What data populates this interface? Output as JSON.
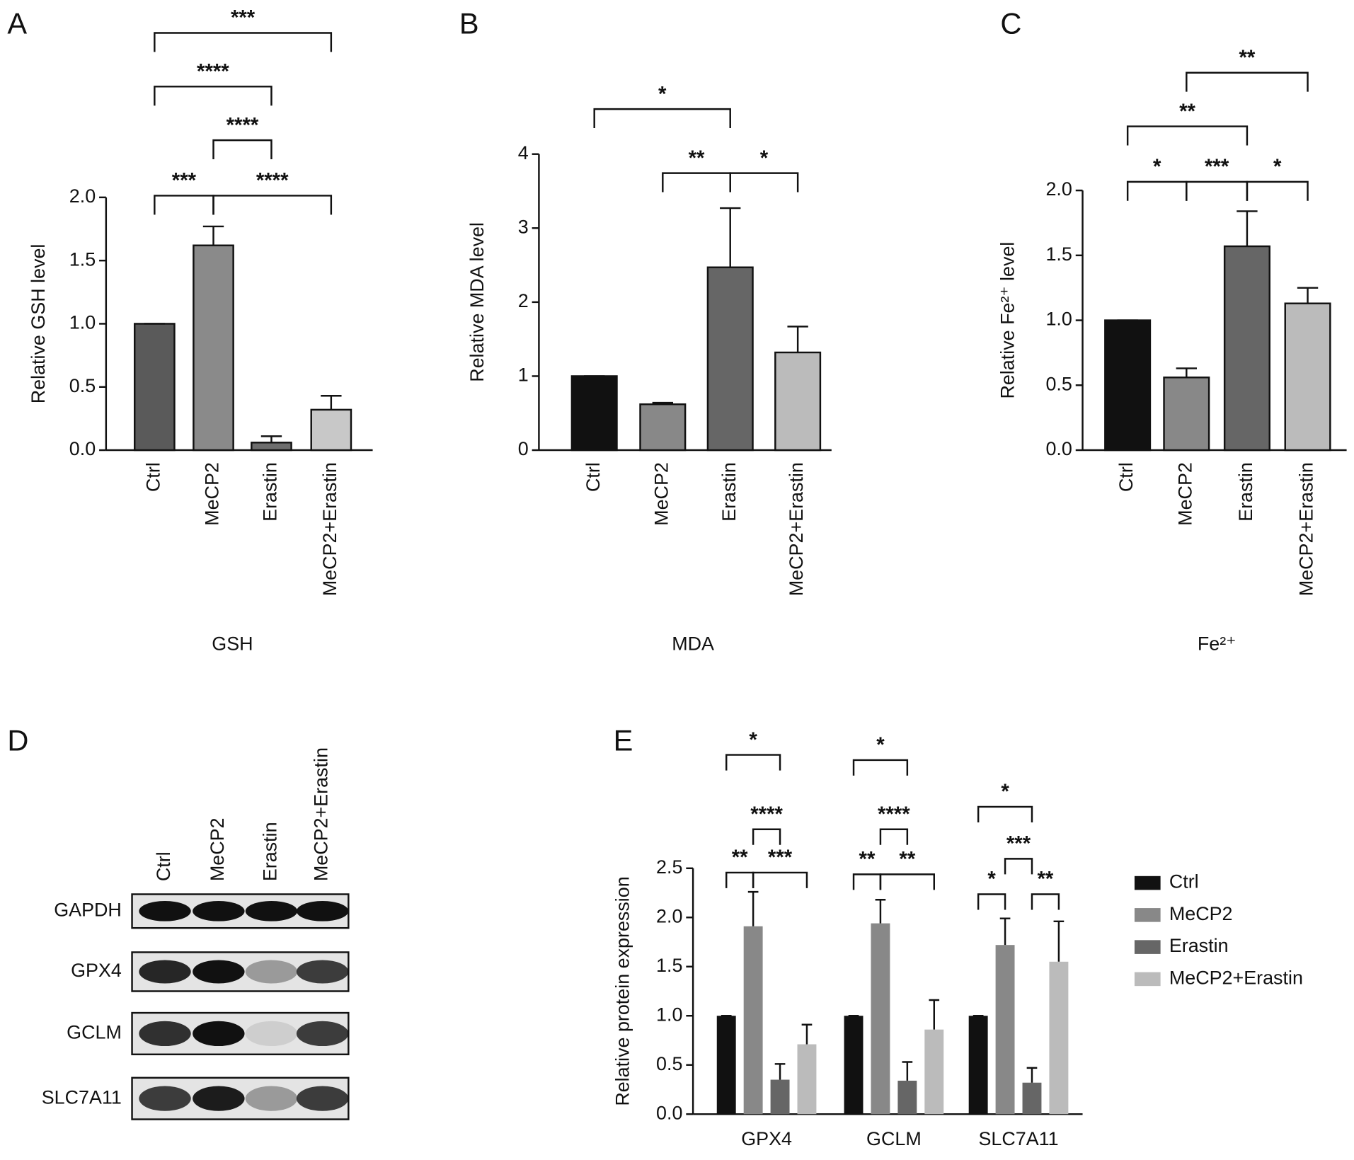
{
  "chart_data": [
    {
      "type": "bar",
      "panel_label": "A",
      "xlabel": "GSH",
      "ylabel": "Relative GSH level",
      "categories": [
        "Ctrl",
        "MeCP2",
        "Erastin",
        "MeCP2+Erastin"
      ],
      "values": [
        1.0,
        1.62,
        0.06,
        0.32
      ],
      "errors": [
        0,
        0.15,
        0.05,
        0.11
      ],
      "colors": [
        "#5a5a5a",
        "#8a8a8a",
        "#6e6e6e",
        "#c8c8c8"
      ],
      "ylim": [
        0,
        2.0
      ],
      "yticks": [
        {
          "value": 0,
          "label": "0.0"
        },
        {
          "value": 0.5,
          "label": "0.5"
        },
        {
          "value": 1,
          "label": "1.0"
        },
        {
          "value": 1.5,
          "label": "1.5"
        },
        {
          "value": 2,
          "label": "2.0"
        }
      ],
      "annotations": [
        {
          "text": "***",
          "between": [
            "Ctrl",
            "MeCP2+Erastin"
          ]
        },
        {
          "text": "****",
          "between": [
            "Ctrl",
            "Erastin"
          ]
        },
        {
          "text": "****",
          "between": [
            "MeCP2",
            "Erastin"
          ]
        },
        {
          "text": "***",
          "between": [
            "Ctrl",
            "MeCP2"
          ]
        },
        {
          "text": "****",
          "between": [
            "MeCP2",
            "MeCP2+Erastin"
          ]
        }
      ]
    },
    {
      "type": "bar",
      "panel_label": "B",
      "xlabel": "MDA",
      "ylabel": "Relative MDA level",
      "categories": [
        "Ctrl",
        "MeCP2",
        "Erastin",
        "MeCP2+Erastin"
      ],
      "values": [
        1.0,
        0.62,
        2.47,
        1.32
      ],
      "errors": [
        0,
        0.02,
        0.8,
        0.35
      ],
      "colors": [
        "#111111",
        "#888888",
        "#666666",
        "#bbbbbb"
      ],
      "ylim": [
        0,
        4
      ],
      "yticks": [
        0,
        1,
        2,
        3,
        4
      ],
      "annotations": [
        {
          "text": "*",
          "between": [
            "Ctrl",
            "Erastin"
          ]
        },
        {
          "text": "**",
          "between": [
            "MeCP2",
            "Erastin"
          ]
        },
        {
          "text": "*",
          "between": [
            "Erastin",
            "MeCP2+Erastin"
          ]
        }
      ]
    },
    {
      "type": "bar",
      "panel_label": "C",
      "xlabel": "Fe²⁺",
      "ylabel": "Relative Fe²⁺ level",
      "categories": [
        "Ctrl",
        "MeCP2",
        "Erastin",
        "MeCP2+Erastin"
      ],
      "values": [
        1.0,
        0.56,
        1.57,
        1.13
      ],
      "errors": [
        0,
        0.07,
        0.27,
        0.12
      ],
      "colors": [
        "#111111",
        "#888888",
        "#666666",
        "#bbbbbb"
      ],
      "ylim": [
        0,
        2.0
      ],
      "yticks": [
        {
          "value": 0,
          "label": "0.0"
        },
        {
          "value": 0.5,
          "label": "0.5"
        },
        {
          "value": 1,
          "label": "1.0"
        },
        {
          "value": 1.5,
          "label": "1.5"
        },
        {
          "value": 2,
          "label": "2.0"
        }
      ],
      "annotations": [
        {
          "text": "**",
          "between": [
            "MeCP2",
            "MeCP2+Erastin"
          ]
        },
        {
          "text": "**",
          "between": [
            "Ctrl",
            "Erastin"
          ]
        },
        {
          "text": "*",
          "between": [
            "Ctrl",
            "MeCP2"
          ]
        },
        {
          "text": "***",
          "between": [
            "MeCP2",
            "Erastin"
          ]
        },
        {
          "text": "*",
          "between": [
            "Erastin",
            "MeCP2+Erastin"
          ]
        }
      ]
    },
    {
      "type": "grouped_bar",
      "panel_label": "E",
      "ylabel": "Relative protein expression",
      "categories": [
        "GPX4",
        "GCLM",
        "SLC7A11"
      ],
      "series": [
        {
          "name": "Ctrl",
          "color": "#111111",
          "values": [
            1.0,
            1.0,
            1.0
          ],
          "errors": [
            0,
            0,
            0
          ]
        },
        {
          "name": "MeCP2",
          "color": "#888888",
          "values": [
            1.91,
            1.94,
            1.72
          ],
          "errors": [
            0.35,
            0.24,
            0.27
          ]
        },
        {
          "name": "Erastin",
          "color": "#666666",
          "values": [
            0.35,
            0.34,
            0.32
          ],
          "errors": [
            0.16,
            0.19,
            0.15
          ]
        },
        {
          "name": "MeCP2+Erastin",
          "color": "#bbbbbb",
          "values": [
            0.71,
            0.86,
            1.55
          ],
          "errors": [
            0.2,
            0.3,
            0.41
          ]
        }
      ],
      "ylim": [
        0,
        2.5
      ],
      "yticks": [
        {
          "value": 0,
          "label": "0.0"
        },
        {
          "value": 0.5,
          "label": "0.5"
        },
        {
          "value": 1,
          "label": "1.0"
        },
        {
          "value": 1.5,
          "label": "1.5"
        },
        {
          "value": 2,
          "label": "2.0"
        },
        {
          "value": 2.5,
          "label": "2.5"
        }
      ],
      "legend": "right",
      "annotations": [
        {
          "group": "GPX4",
          "text": "*",
          "between": [
            "Ctrl",
            "Erastin"
          ]
        },
        {
          "group": "GPX4",
          "text": "****",
          "between": [
            "MeCP2",
            "Erastin"
          ]
        },
        {
          "group": "GPX4",
          "text": "**",
          "between": [
            "Ctrl",
            "MeCP2"
          ]
        },
        {
          "group": "GPX4",
          "text": "***",
          "between": [
            "MeCP2",
            "MeCP2+Erastin"
          ]
        },
        {
          "group": "GCLM",
          "text": "*",
          "between": [
            "Ctrl",
            "Erastin"
          ]
        },
        {
          "group": "GCLM",
          "text": "****",
          "between": [
            "MeCP2",
            "Erastin"
          ]
        },
        {
          "group": "GCLM",
          "text": "**",
          "between": [
            "Ctrl",
            "MeCP2"
          ]
        },
        {
          "group": "GCLM",
          "text": "**",
          "between": [
            "MeCP2",
            "MeCP2+Erastin"
          ]
        },
        {
          "group": "SLC7A11",
          "text": "*",
          "between": [
            "Ctrl",
            "Erastin"
          ]
        },
        {
          "group": "SLC7A11",
          "text": "***",
          "between": [
            "MeCP2",
            "Erastin"
          ]
        },
        {
          "group": "SLC7A11",
          "text": "*",
          "between": [
            "Ctrl",
            "MeCP2"
          ]
        },
        {
          "group": "SLC7A11",
          "text": "**",
          "between": [
            "Erastin",
            "MeCP2+Erastin"
          ]
        }
      ]
    }
  ],
  "western_blot": {
    "panel_label": "D",
    "lanes": [
      "Ctrl",
      "MeCP2",
      "Erastin",
      "MeCP2+Erastin"
    ],
    "rows": [
      "GAPDH",
      "GPX4",
      "GCLM",
      "SLC7A11"
    ]
  }
}
